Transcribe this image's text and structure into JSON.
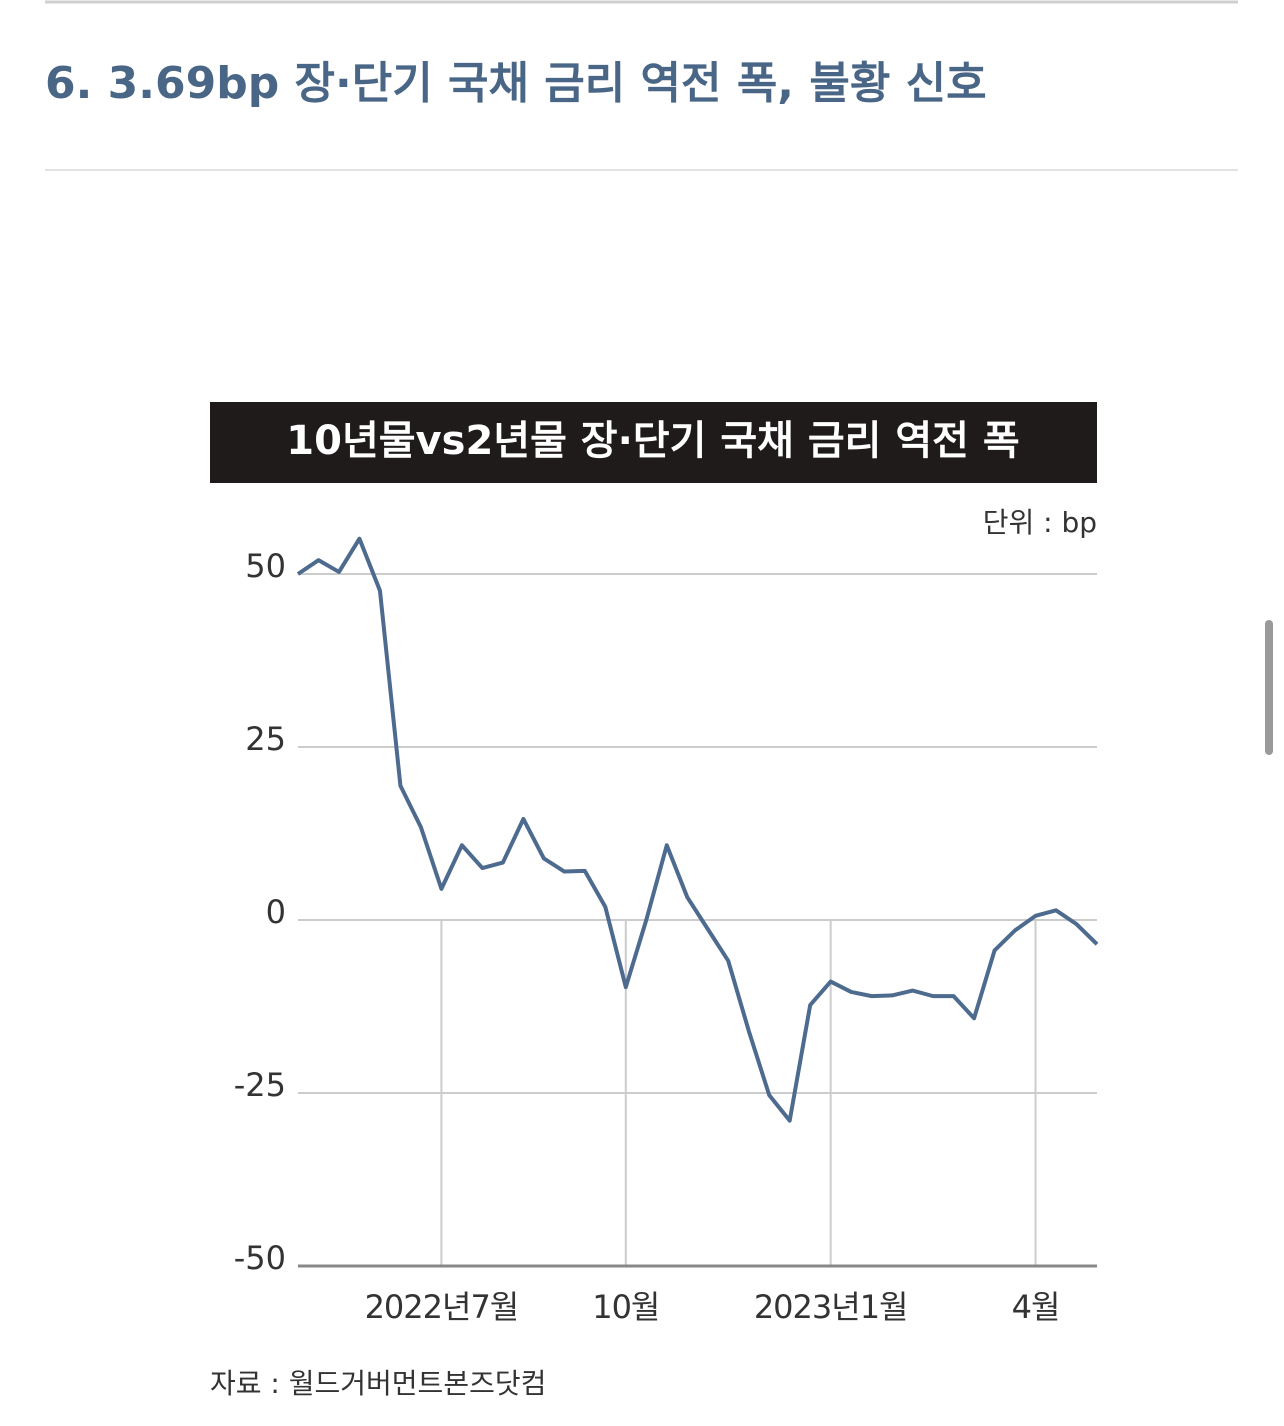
{
  "heading": "6. 3.69bp 장·단기 국채 금리 역전 폭, 불황 신호",
  "chart_data": {
    "type": "line",
    "title": "10년물vs2년물 장·단기 국채 금리 역전 폭",
    "unit": "단위 : bp",
    "source": "자료 : 월드거버먼트본즈닷컴",
    "categories": [
      null,
      null,
      null,
      null,
      null,
      null,
      null,
      "2022년7월",
      null,
      null,
      null,
      null,
      null,
      null,
      null,
      null,
      "10월",
      null,
      null,
      null,
      null,
      null,
      null,
      null,
      null,
      null,
      "2023년1월",
      null,
      null,
      null,
      null,
      null,
      null,
      null,
      null,
      null,
      "4월",
      null,
      null,
      null
    ],
    "values": [
      50,
      52,
      50.3,
      55.1,
      47.6,
      19.4,
      13.4,
      4.5,
      10.8,
      7.5,
      8.3,
      14.6,
      8.9,
      7,
      7.1,
      1.9,
      -9.7,
      0,
      10.8,
      3.3,
      -1.3,
      -5.9,
      -16,
      -25.3,
      -29,
      -12.3,
      -8.9,
      -10.4,
      -11,
      -10.9,
      -10.2,
      -11,
      -11,
      -14.2,
      -4.4,
      -1.5,
      0.6,
      1.4,
      -0.6,
      -3.5
    ],
    "color": "#4d6a8f",
    "ylim": [
      -50,
      50
    ],
    "yticks": [
      -50,
      -25,
      0,
      25,
      50
    ],
    "grid": true
  }
}
